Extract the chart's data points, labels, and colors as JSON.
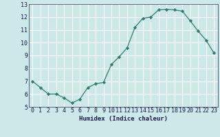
{
  "x": [
    0,
    1,
    2,
    3,
    4,
    5,
    6,
    7,
    8,
    9,
    10,
    11,
    12,
    13,
    14,
    15,
    16,
    17,
    18,
    19,
    20,
    21,
    22,
    23
  ],
  "y": [
    7.0,
    6.5,
    6.0,
    6.0,
    5.7,
    5.3,
    5.6,
    6.5,
    6.8,
    6.9,
    8.3,
    8.9,
    9.6,
    11.2,
    11.9,
    12.0,
    12.55,
    12.6,
    12.55,
    12.45,
    11.7,
    10.9,
    10.2,
    9.2
  ],
  "line_color": "#2e7d6e",
  "marker": "D",
  "marker_size": 2.2,
  "bg_color": "#cce8e8",
  "grid_color": "#ffffff",
  "xlabel": "Humidex (Indice chaleur)",
  "xlim": [
    -0.5,
    23.5
  ],
  "ylim": [
    5,
    13
  ],
  "yticks": [
    5,
    6,
    7,
    8,
    9,
    10,
    11,
    12,
    13
  ],
  "xtick_labels": [
    "0",
    "1",
    "2",
    "3",
    "4",
    "5",
    "6",
    "7",
    "8",
    "9",
    "10",
    "11",
    "12",
    "13",
    "14",
    "15",
    "16",
    "17",
    "18",
    "19",
    "20",
    "21",
    "22",
    "23"
  ],
  "label_fontsize": 6.5,
  "tick_fontsize": 6.0
}
